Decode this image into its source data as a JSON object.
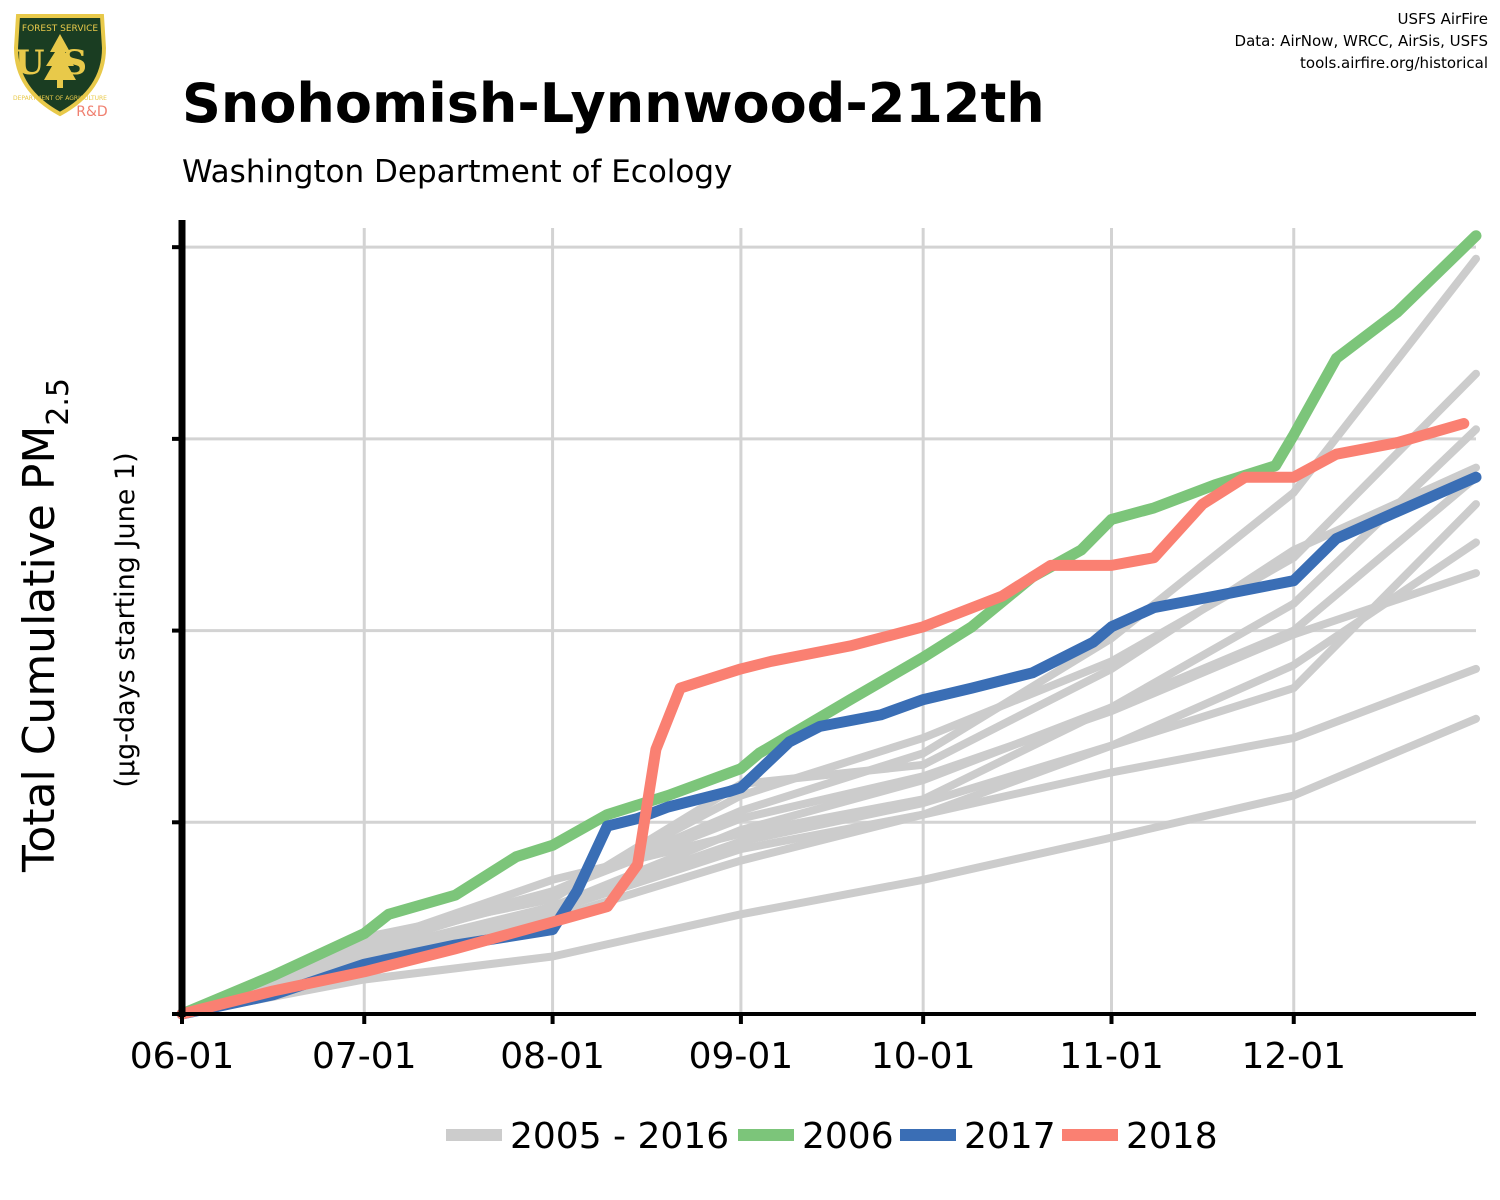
{
  "logo": {
    "top_text": "FOREST SERVICE",
    "letters": "US",
    "bottom_text": "DEPARTMENT OF AGRICULTURE",
    "tag": "R&D",
    "colors": {
      "shield": "#1a3d22",
      "border": "#e8c94a",
      "tree": "#e8c94a",
      "tag": "#f08070"
    }
  },
  "credits": {
    "line1": "USFS AirFire",
    "line2": "Data: AirNow, WRCC, AirSis, USFS",
    "line3": "tools.airfire.org/historical"
  },
  "title": "Snohomish-Lynnwood-212th",
  "subtitle": "Washington Department of Ecology",
  "chart_data": {
    "type": "line",
    "title": "Snohomish-Lynnwood-212th",
    "subtitle": "Washington Department of Ecology",
    "ylabel_main": "Total Cumulative PM",
    "ylabel_sub_main": "2.5",
    "ylabel_unit": "(µg-days starting June 1)",
    "x_axis": "day of year starting June 1",
    "x_ticks": [
      {
        "day": 0,
        "label": "06-01"
      },
      {
        "day": 30,
        "label": "07-01"
      },
      {
        "day": 61,
        "label": "08-01"
      },
      {
        "day": 92,
        "label": "09-01"
      },
      {
        "day": 122,
        "label": "10-01"
      },
      {
        "day": 153,
        "label": "11-01"
      },
      {
        "day": 183,
        "label": "12-01"
      }
    ],
    "xlim": [
      0,
      213
    ],
    "ylim": [
      0,
      4.1
    ],
    "y_tick_values": [
      0,
      1,
      2,
      3,
      4
    ],
    "y_tick_labels_shown": false,
    "grid": true,
    "legend_position": "bottom",
    "legend": [
      {
        "label": "2005 - 2016",
        "color": "#cccccc"
      },
      {
        "label": "2006",
        "color": "#7cc57a"
      },
      {
        "label": "2017",
        "color": "#3a6eb5"
      },
      {
        "label": "2018",
        "color": "#fa8072"
      }
    ],
    "series": [
      {
        "group": "2005 - 2016",
        "color": "#cccccc",
        "x": [
          0,
          30,
          61,
          92,
          122,
          153,
          183,
          213
        ],
        "y": [
          0,
          0.34,
          0.64,
          1.06,
          1.36,
          1.96,
          2.72,
          3.94
        ]
      },
      {
        "group": "2005 - 2016",
        "color": "#cccccc",
        "x": [
          0,
          30,
          61,
          92,
          122,
          153,
          183,
          213
        ],
        "y": [
          0,
          0.36,
          0.62,
          1.14,
          1.44,
          1.84,
          2.38,
          3.34
        ]
      },
      {
        "group": "2005 - 2016",
        "color": "#cccccc",
        "x": [
          0,
          30,
          61,
          92,
          122,
          153,
          183,
          213
        ],
        "y": [
          0,
          0.3,
          0.56,
          0.96,
          1.22,
          1.6,
          2.14,
          3.05
        ]
      },
      {
        "group": "2005 - 2016",
        "color": "#cccccc",
        "x": [
          0,
          30,
          61,
          92,
          122,
          153,
          183,
          213
        ],
        "y": [
          0,
          0.4,
          0.6,
          1.2,
          1.3,
          1.8,
          2.42,
          2.85
        ]
      },
      {
        "group": "2005 - 2016",
        "color": "#cccccc",
        "x": [
          0,
          30,
          61,
          92,
          122,
          153,
          183,
          213
        ],
        "y": [
          0,
          0.32,
          0.56,
          0.9,
          1.1,
          1.4,
          1.82,
          2.46
        ]
      },
      {
        "group": "2005 - 2016",
        "color": "#cccccc",
        "x": [
          0,
          30,
          61,
          92,
          122,
          153,
          183,
          213
        ],
        "y": [
          0,
          0.38,
          0.64,
          1.02,
          1.24,
          1.58,
          1.98,
          2.3
        ]
      },
      {
        "group": "2005 - 2016",
        "color": "#cccccc",
        "x": [
          0,
          30,
          61,
          92,
          122,
          153,
          183,
          213
        ],
        "y": [
          0,
          0.32,
          0.54,
          0.86,
          1.04,
          1.26,
          1.44,
          1.8
        ]
      },
      {
        "group": "2005 - 2016",
        "color": "#cccccc",
        "x": [
          0,
          30,
          61,
          92,
          122,
          153,
          183,
          213
        ],
        "y": [
          0,
          0.18,
          0.3,
          0.52,
          0.7,
          0.92,
          1.14,
          1.54
        ]
      },
      {
        "group": "2005 - 2016",
        "color": "#cccccc",
        "x": [
          0,
          30,
          61,
          92,
          122,
          153,
          183,
          213
        ],
        "y": [
          0,
          0.36,
          0.7,
          0.94,
          1.12,
          1.6,
          2.0,
          2.8
        ]
      },
      {
        "group": "2005 - 2016",
        "color": "#cccccc",
        "x": [
          0,
          30,
          61,
          92,
          122,
          153,
          183,
          213
        ],
        "y": [
          0,
          0.28,
          0.5,
          0.8,
          1.04,
          1.4,
          1.7,
          2.66
        ]
      },
      {
        "name": "2006",
        "color": "#7cc57a",
        "x": [
          0,
          15,
          30,
          34,
          45,
          55,
          61,
          70,
          80,
          92,
          95,
          110,
          122,
          130,
          140,
          148,
          153,
          160,
          170,
          180,
          183,
          190,
          200,
          213
        ],
        "y": [
          0,
          0.2,
          0.42,
          0.52,
          0.62,
          0.82,
          0.88,
          1.04,
          1.14,
          1.28,
          1.36,
          1.64,
          1.86,
          2.02,
          2.28,
          2.42,
          2.58,
          2.64,
          2.76,
          2.86,
          3.02,
          3.42,
          3.66,
          4.06
        ]
      },
      {
        "name": "2017",
        "color": "#3a6eb5",
        "x": [
          0,
          15,
          30,
          45,
          61,
          65,
          70,
          75,
          80,
          90,
          92,
          100,
          105,
          115,
          122,
          130,
          140,
          150,
          153,
          160,
          170,
          183,
          190,
          200,
          213
        ],
        "y": [
          0,
          0.1,
          0.26,
          0.36,
          0.44,
          0.64,
          0.98,
          1.02,
          1.08,
          1.16,
          1.18,
          1.42,
          1.5,
          1.56,
          1.64,
          1.7,
          1.78,
          1.94,
          2.02,
          2.12,
          2.18,
          2.26,
          2.48,
          2.62,
          2.8
        ]
      },
      {
        "name": "2018",
        "color": "#fa8072",
        "x": [
          0,
          15,
          30,
          45,
          61,
          70,
          75,
          78,
          82,
          86,
          92,
          97,
          110,
          122,
          135,
          143,
          153,
          160,
          168,
          175,
          183,
          190,
          200,
          211
        ],
        "y": [
          0,
          0.12,
          0.22,
          0.34,
          0.48,
          0.56,
          0.78,
          1.38,
          1.7,
          1.74,
          1.8,
          1.84,
          1.92,
          2.02,
          2.18,
          2.34,
          2.34,
          2.38,
          2.66,
          2.8,
          2.8,
          2.92,
          2.98,
          3.08
        ]
      }
    ]
  }
}
